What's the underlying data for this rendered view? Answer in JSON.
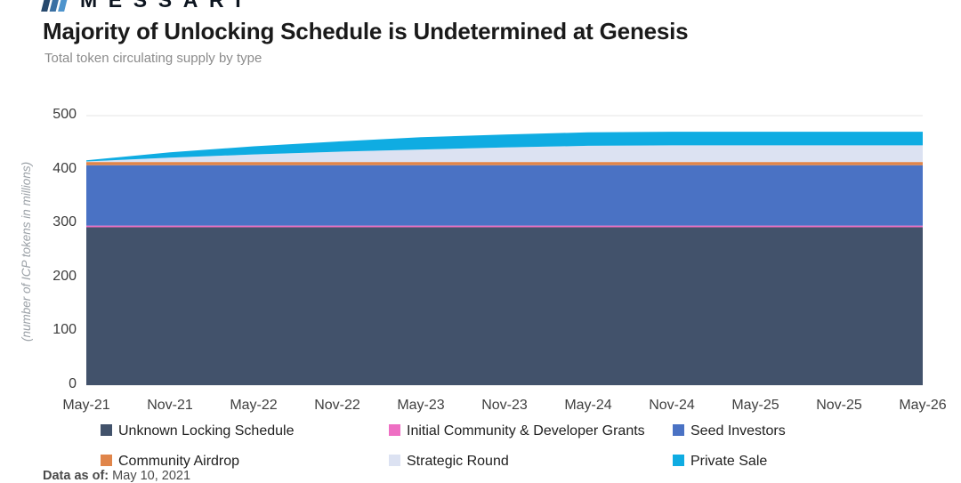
{
  "header": {
    "brand": "MESSARI",
    "title": "Majority of Unlocking Schedule is Undetermined at Genesis",
    "subtitle": "Total token circulating supply by type"
  },
  "chart_data": {
    "type": "area",
    "stacked": true,
    "title": "Majority of Unlocking Schedule is Undetermined at Genesis",
    "subtitle": "Total token circulating supply by type",
    "xlabel": "",
    "ylabel": "(number of ICP tokens in millions)",
    "ylim": [
      0,
      500
    ],
    "yticks": [
      0,
      100,
      200,
      300,
      400,
      500
    ],
    "grid": "horizontal",
    "legend_position": "bottom",
    "x": [
      "May-21",
      "Nov-21",
      "May-22",
      "Nov-22",
      "May-23",
      "Nov-23",
      "May-24",
      "Nov-24",
      "May-25",
      "Nov-25",
      "May-26"
    ],
    "series": [
      {
        "name": "Unknown Locking Schedule",
        "color": "#42526b",
        "values": [
          293,
          293,
          293,
          293,
          293,
          293,
          293,
          293,
          293,
          293,
          293
        ]
      },
      {
        "name": "Initial Community & Developer Grants",
        "color": "#ee6fc3",
        "values": [
          3,
          3,
          3,
          3,
          3,
          3,
          3,
          3,
          3,
          3,
          3
        ]
      },
      {
        "name": "Seed Investors",
        "color": "#4a72c4",
        "values": [
          112,
          112,
          112,
          112,
          112,
          112,
          112,
          112,
          112,
          112,
          112
        ]
      },
      {
        "name": "Community Airdrop",
        "color": "#e0854a",
        "values": [
          6,
          6,
          6,
          6,
          6,
          6,
          6,
          6,
          6,
          6,
          6
        ]
      },
      {
        "name": "Strategic Round",
        "color": "#dce2f2",
        "values": [
          1,
          8,
          14,
          19,
          23,
          27,
          30,
          31,
          31,
          31,
          31
        ]
      },
      {
        "name": "Private Sale",
        "color": "#0face2",
        "values": [
          2,
          10,
          15,
          19,
          23,
          24,
          25,
          25,
          25,
          25,
          25
        ]
      }
    ]
  },
  "footer": {
    "label": "Data as of:",
    "date": "May 10, 2021"
  },
  "colors": {
    "gridline": "#e4e4e4",
    "background": "#ffffff"
  }
}
